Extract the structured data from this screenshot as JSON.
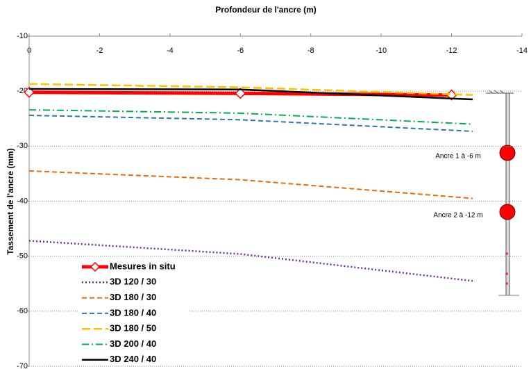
{
  "chart_data": {
    "type": "line",
    "title": "Profondeur de l'ancre (m)",
    "y_label": "Tassement de l'ancre (mm)",
    "xlim": [
      0,
      -14
    ],
    "xticks": [
      0,
      -2,
      -4,
      -6,
      -8,
      -10,
      -12,
      -14
    ],
    "ylim": [
      -70,
      -10
    ],
    "yticks": [
      -10,
      -20,
      -30,
      -40,
      -50,
      -60,
      -70
    ],
    "grid": true,
    "legend": "lower-left",
    "series": [
      {
        "name": "Mesures in situ",
        "color": "#ff0000",
        "dash": "solid",
        "marker": "diamond",
        "width": 5,
        "x": [
          0,
          -6,
          -12
        ],
        "values": [
          -20.2,
          -20.4,
          -20.7
        ]
      },
      {
        "name": "3D 120 / 30",
        "color": "#7030a0",
        "dash": "dotted",
        "width": 2.5,
        "x": [
          0,
          -6,
          -12.6
        ],
        "values": [
          -47.2,
          -49.6,
          -54.5
        ]
      },
      {
        "name": "3D 180 / 30",
        "color": "#e46c0a",
        "dash": "dashed",
        "width": 2,
        "x": [
          0,
          -6,
          -12.6
        ],
        "values": [
          -34.5,
          -36.1,
          -39.5
        ]
      },
      {
        "name": "3D 180 / 40",
        "color": "#2e75b6",
        "dash": "dashed",
        "width": 2,
        "x": [
          0,
          -6,
          -12.6
        ],
        "values": [
          -24.4,
          -25.2,
          -27.3
        ]
      },
      {
        "name": "3D 180 / 50",
        "color": "#ffc000",
        "dash": "longdash",
        "width": 2.5,
        "x": [
          0,
          -6,
          -12.6
        ],
        "values": [
          -18.7,
          -19.3,
          -20.7
        ]
      },
      {
        "name": "3D 200 / 40",
        "color": "#00b050",
        "dash": "dashdot",
        "width": 2,
        "x": [
          0,
          -6,
          -12.6
        ],
        "values": [
          -23.4,
          -24.0,
          -26.0
        ]
      },
      {
        "name": "3D 240 / 40",
        "color": "#000000",
        "dash": "solid",
        "width": 2.5,
        "x": [
          0,
          -6,
          -12.6
        ],
        "values": [
          -19.6,
          -19.7,
          -21.5
        ]
      }
    ],
    "annotations": [
      "Ancre 1 à -6 m",
      "Ancre 2 à -12 m"
    ]
  }
}
